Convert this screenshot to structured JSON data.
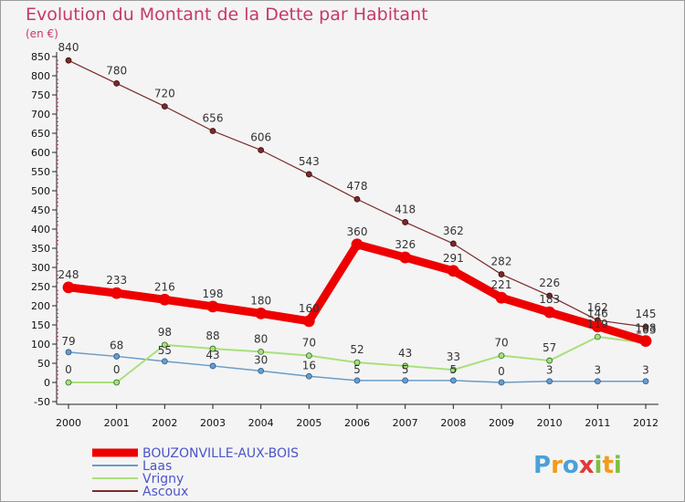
{
  "chart_data": {
    "type": "line",
    "title": "Evolution du Montant de la Dette par Habitant",
    "unit": "(en €)",
    "x": [
      "2000",
      "2001",
      "2002",
      "2003",
      "2004",
      "2005",
      "2006",
      "2007",
      "2008",
      "2009",
      "2010",
      "2011",
      "2012"
    ],
    "ylim": [
      -50,
      850
    ],
    "yticks": [
      -50,
      0,
      50,
      100,
      150,
      200,
      250,
      300,
      350,
      400,
      450,
      500,
      550,
      600,
      650,
      700,
      750,
      800,
      850
    ],
    "grid": false,
    "legend_position": "bottom-left",
    "series": [
      {
        "name": "BOUZONVILLE-AUX-BOIS",
        "color": "#ee0000",
        "values": [
          248,
          233,
          216,
          198,
          180,
          160,
          360,
          326,
          291,
          221,
          183,
          146,
          108
        ],
        "labels": [
          "248",
          "233",
          "216",
          "198",
          "180",
          "160",
          "360",
          "326",
          "291",
          "221",
          "183",
          "146",
          "108"
        ]
      },
      {
        "name": "Laas",
        "color": "#6a9cc8",
        "values": [
          79,
          68,
          55,
          43,
          30,
          16,
          5,
          5,
          5,
          0,
          3,
          3,
          3
        ],
        "labels": [
          "79",
          "68",
          "55",
          "43",
          "30",
          "16",
          "5",
          "5",
          "5",
          "0",
          "3",
          "3",
          "3"
        ]
      },
      {
        "name": "Vrigny",
        "color": "#a9e07a",
        "values": [
          0,
          0,
          98,
          88,
          80,
          70,
          52,
          43,
          33,
          70,
          57,
          119,
          103
        ],
        "labels": [
          "0",
          "0",
          "98",
          "88",
          "80",
          "70",
          "52",
          "43",
          "33",
          "70",
          "57",
          "119",
          "103"
        ]
      },
      {
        "name": "Ascoux",
        "color": "#7a2a2a",
        "values": [
          840,
          780,
          720,
          656,
          606,
          543,
          478,
          418,
          362,
          282,
          226,
          162,
          145
        ],
        "labels": [
          "840",
          "780",
          "720",
          "656",
          "606",
          "543",
          "478",
          "418",
          "362",
          "282",
          "226",
          "162",
          "145"
        ]
      }
    ]
  },
  "logo": {
    "letters": [
      "P",
      "r",
      "o",
      "x",
      "i",
      "t",
      "i"
    ],
    "colors": [
      "#4aa0d8",
      "#f39a1c",
      "#4aa0d8",
      "#e03a3a",
      "#7cc043",
      "#f39a1c",
      "#7cc043"
    ]
  }
}
